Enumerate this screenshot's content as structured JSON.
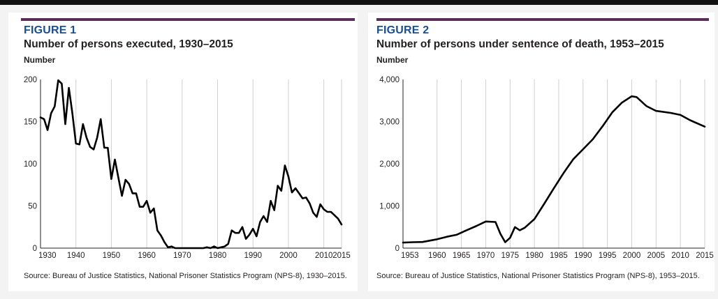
{
  "colors": {
    "accent_rule": "#5a2d57",
    "figure_label": "#1a4f8f",
    "line": "#000000",
    "grid": "#cfcfcf"
  },
  "figures": [
    {
      "label": "FIGURE 1",
      "title": "Number of persons executed, 1930–2015",
      "unit": "Number",
      "source": "Source: Bureau of Justice Statistics, National Prisoner Statistics Program (NPS-8), 1930–2015."
    },
    {
      "label": "FIGURE 2",
      "title": "Number of persons under sentence of death, 1953–2015",
      "unit": "Number",
      "source": "Source: Bureau of Justice Statistics, National Prisoner Statistics Program (NPS-8), 1953–2015."
    }
  ],
  "chart_data": [
    {
      "type": "line",
      "title": "Number of persons executed, 1930–2015",
      "ylabel": "Number",
      "xlim": [
        1930,
        2015
      ],
      "ylim": [
        0,
        200
      ],
      "x_ticks": [
        "1930",
        "1940",
        "1950",
        "1960",
        "1970",
        "1980",
        "1990",
        "2000",
        "2010",
        "2015"
      ],
      "y_ticks": [
        "0",
        "50",
        "100",
        "150",
        "200"
      ],
      "grid": "vertical",
      "x": [
        1930,
        1931,
        1932,
        1933,
        1934,
        1935,
        1936,
        1937,
        1938,
        1939,
        1940,
        1941,
        1942,
        1943,
        1944,
        1945,
        1946,
        1947,
        1948,
        1949,
        1950,
        1951,
        1952,
        1953,
        1954,
        1955,
        1956,
        1957,
        1958,
        1959,
        1960,
        1961,
        1962,
        1963,
        1964,
        1965,
        1966,
        1967,
        1968,
        1969,
        1970,
        1971,
        1972,
        1973,
        1974,
        1975,
        1976,
        1977,
        1978,
        1979,
        1980,
        1981,
        1982,
        1983,
        1984,
        1985,
        1986,
        1987,
        1988,
        1989,
        1990,
        1991,
        1992,
        1993,
        1994,
        1995,
        1996,
        1997,
        1998,
        1999,
        2000,
        2001,
        2002,
        2003,
        2004,
        2005,
        2006,
        2007,
        2008,
        2009,
        2010,
        2011,
        2012,
        2013,
        2014,
        2015
      ],
      "values": [
        155,
        153,
        140,
        160,
        168,
        199,
        195,
        147,
        190,
        160,
        124,
        123,
        147,
        131,
        120,
        117,
        131,
        153,
        119,
        119,
        82,
        105,
        83,
        62,
        81,
        76,
        65,
        65,
        49,
        49,
        56,
        42,
        47,
        21,
        15,
        7,
        1,
        2,
        0,
        0,
        0,
        0,
        0,
        0,
        0,
        0,
        0,
        1,
        0,
        2,
        0,
        1,
        2,
        5,
        21,
        18,
        18,
        25,
        11,
        16,
        23,
        14,
        31,
        38,
        31,
        56,
        45,
        74,
        68,
        98,
        85,
        66,
        71,
        65,
        59,
        60,
        53,
        42,
        37,
        52,
        46,
        43,
        43,
        39,
        35,
        28
      ]
    },
    {
      "type": "line",
      "title": "Number of persons under sentence of death, 1953–2015",
      "ylabel": "Number",
      "xlim": [
        1953,
        2015
      ],
      "ylim": [
        0,
        4000
      ],
      "x_ticks": [
        "1953",
        "1960",
        "1965",
        "1970",
        "1975",
        "1980",
        "1985",
        "1990",
        "1995",
        "2000",
        "2005",
        "2010",
        "2015"
      ],
      "y_ticks": [
        "0",
        "1,000",
        "2,000",
        "3,000",
        "4,000"
      ],
      "grid": "vertical",
      "x": [
        1953,
        1955,
        1957,
        1960,
        1962,
        1964,
        1966,
        1968,
        1970,
        1972,
        1973,
        1974,
        1975,
        1976,
        1977,
        1978,
        1980,
        1982,
        1984,
        1986,
        1988,
        1990,
        1992,
        1994,
        1996,
        1998,
        2000,
        2001,
        2003,
        2005,
        2008,
        2010,
        2012,
        2015
      ],
      "values": [
        131,
        140,
        145,
        210,
        270,
        315,
        420,
        520,
        631,
        620,
        340,
        140,
        244,
        500,
        423,
        482,
        688,
        1050,
        1420,
        1780,
        2110,
        2346,
        2580,
        2890,
        3220,
        3452,
        3601,
        3581,
        3370,
        3254,
        3207,
        3158,
        3033,
        2881
      ]
    }
  ]
}
